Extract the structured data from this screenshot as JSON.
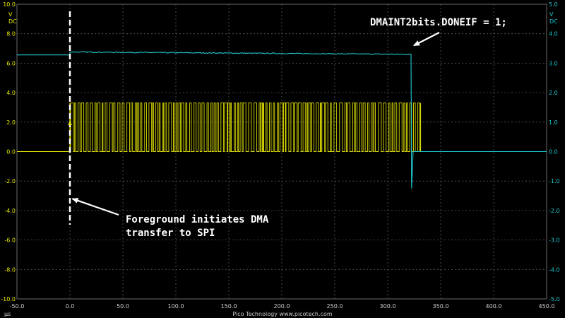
{
  "chart_data": {
    "type": "line",
    "x_unit": "µs",
    "x_ticks": [
      "-50.0",
      "0.0",
      "50.0",
      "100.0",
      "150.0",
      "200.0",
      "250.0",
      "300.0",
      "350.0",
      "400.0",
      "450.0"
    ],
    "xlim": [
      -50,
      450
    ],
    "left_axis": {
      "unit_top": "V",
      "unit_bottom": "DC",
      "ticks": [
        "10.0",
        "8.0",
        "6.0",
        "4.0",
        "2.0",
        "0.0",
        "-2.0",
        "-4.0",
        "-6.0",
        "-8.0",
        "-10.0"
      ],
      "ylim": [
        -10,
        10
      ]
    },
    "right_axis": {
      "unit_top": "V",
      "unit_bottom": "DC",
      "ticks": [
        "5.0",
        "4.0",
        "3.0",
        "2.0",
        "1.0",
        "0.0",
        "-1.0",
        "-2.0",
        "-3.0",
        "-4.0",
        "-5.0"
      ],
      "ylim": [
        -5,
        5
      ]
    },
    "grid": true,
    "series": [
      {
        "color": "#e8e800",
        "axis": "left",
        "points": [
          [
            -50,
            0
          ],
          [
            0,
            0
          ],
          [
            0,
            3.3
          ],
          [
            331,
            3.3
          ],
          [
            331,
            0
          ],
          [
            450,
            0
          ]
        ],
        "burst": {
          "x_start": 0,
          "x_end": 331,
          "high": 3.3,
          "low": 0
        }
      },
      {
        "color": "#1fc8d0",
        "axis": "right",
        "points": [
          [
            -50,
            3.28
          ],
          [
            0,
            3.28
          ],
          [
            0,
            3.38
          ],
          [
            322,
            3.3
          ],
          [
            322.5,
            -1.25
          ],
          [
            324,
            0
          ],
          [
            450,
            0
          ]
        ]
      }
    ],
    "trigger_x": 0,
    "annotations": [
      {
        "text": "DMAINT2bits.DONEIF = 1;",
        "arrow_to": [
          322,
          3.6
        ],
        "arrow_axis": "right"
      },
      {
        "lines": [
          "Foreground initiates DMA",
          "transfer to SPI"
        ],
        "arrow_to": [
          1,
          -3.2
        ],
        "arrow_axis": "left"
      }
    ]
  },
  "footer": "Pico Technology   www.picotech.com"
}
